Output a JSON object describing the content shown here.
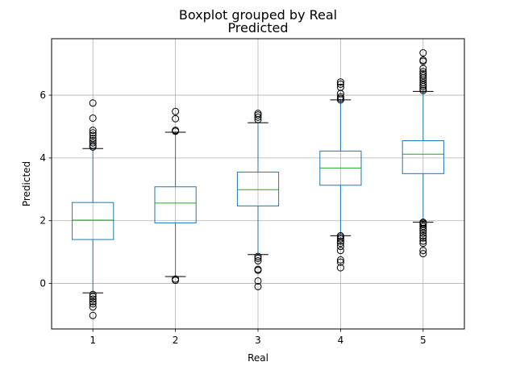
{
  "chart_data": {
    "type": "boxplot",
    "suptitle": "Boxplot grouped by Real",
    "title": "Predicted",
    "xlabel": "Real",
    "ylabel": "Predicted",
    "categories": [
      "1",
      "2",
      "3",
      "4",
      "5"
    ],
    "ylim": [
      -1.45,
      7.8
    ],
    "yticks": [
      0,
      2,
      4,
      6
    ],
    "grid": true,
    "colors": {
      "box": "#1f77b4",
      "median": "#2ca02c",
      "grid": "#b0b0b0",
      "flier": "#000000",
      "cap": "#000000"
    },
    "boxes": [
      {
        "category": "1",
        "whisker_low": -0.3,
        "q1": 1.4,
        "median": 2.02,
        "q3": 2.58,
        "whisker_high": 4.3,
        "fliers": [
          5.75,
          5.27,
          4.88,
          4.8,
          4.72,
          4.62,
          4.55,
          4.48,
          4.4,
          4.35,
          -0.35,
          -0.42,
          -0.5,
          -0.58,
          -0.65,
          -0.75,
          -1.02
        ]
      },
      {
        "category": "2",
        "whisker_low": 0.22,
        "q1": 1.93,
        "median": 2.56,
        "q3": 3.08,
        "whisker_high": 4.82,
        "fliers": [
          5.48,
          5.25,
          4.88,
          4.85,
          0.14,
          0.1
        ]
      },
      {
        "category": "3",
        "whisker_low": 0.92,
        "q1": 2.47,
        "median": 2.99,
        "q3": 3.55,
        "whisker_high": 5.12,
        "fliers": [
          5.42,
          5.37,
          5.3,
          5.22,
          0.86,
          0.8,
          0.72,
          0.45,
          0.42,
          0.08,
          -0.1
        ]
      },
      {
        "category": "4",
        "whisker_low": 1.52,
        "q1": 3.13,
        "median": 3.68,
        "q3": 4.22,
        "whisker_high": 5.85,
        "fliers": [
          6.42,
          6.35,
          6.25,
          6.05,
          5.95,
          5.9,
          5.85,
          1.52,
          1.48,
          1.42,
          1.35,
          1.28,
          1.18,
          1.05,
          0.75,
          0.68,
          0.5
        ]
      },
      {
        "category": "5",
        "whisker_low": 1.95,
        "q1": 3.5,
        "median": 4.12,
        "q3": 4.55,
        "whisker_high": 6.12,
        "fliers": [
          7.35,
          7.12,
          7.08,
          6.85,
          6.75,
          6.68,
          6.62,
          6.55,
          6.48,
          6.4,
          6.33,
          6.27,
          6.2,
          6.15,
          1.95,
          1.92,
          1.88,
          1.82,
          1.75,
          1.68,
          1.6,
          1.52,
          1.45,
          1.35,
          1.28,
          1.05,
          0.95
        ]
      }
    ]
  }
}
